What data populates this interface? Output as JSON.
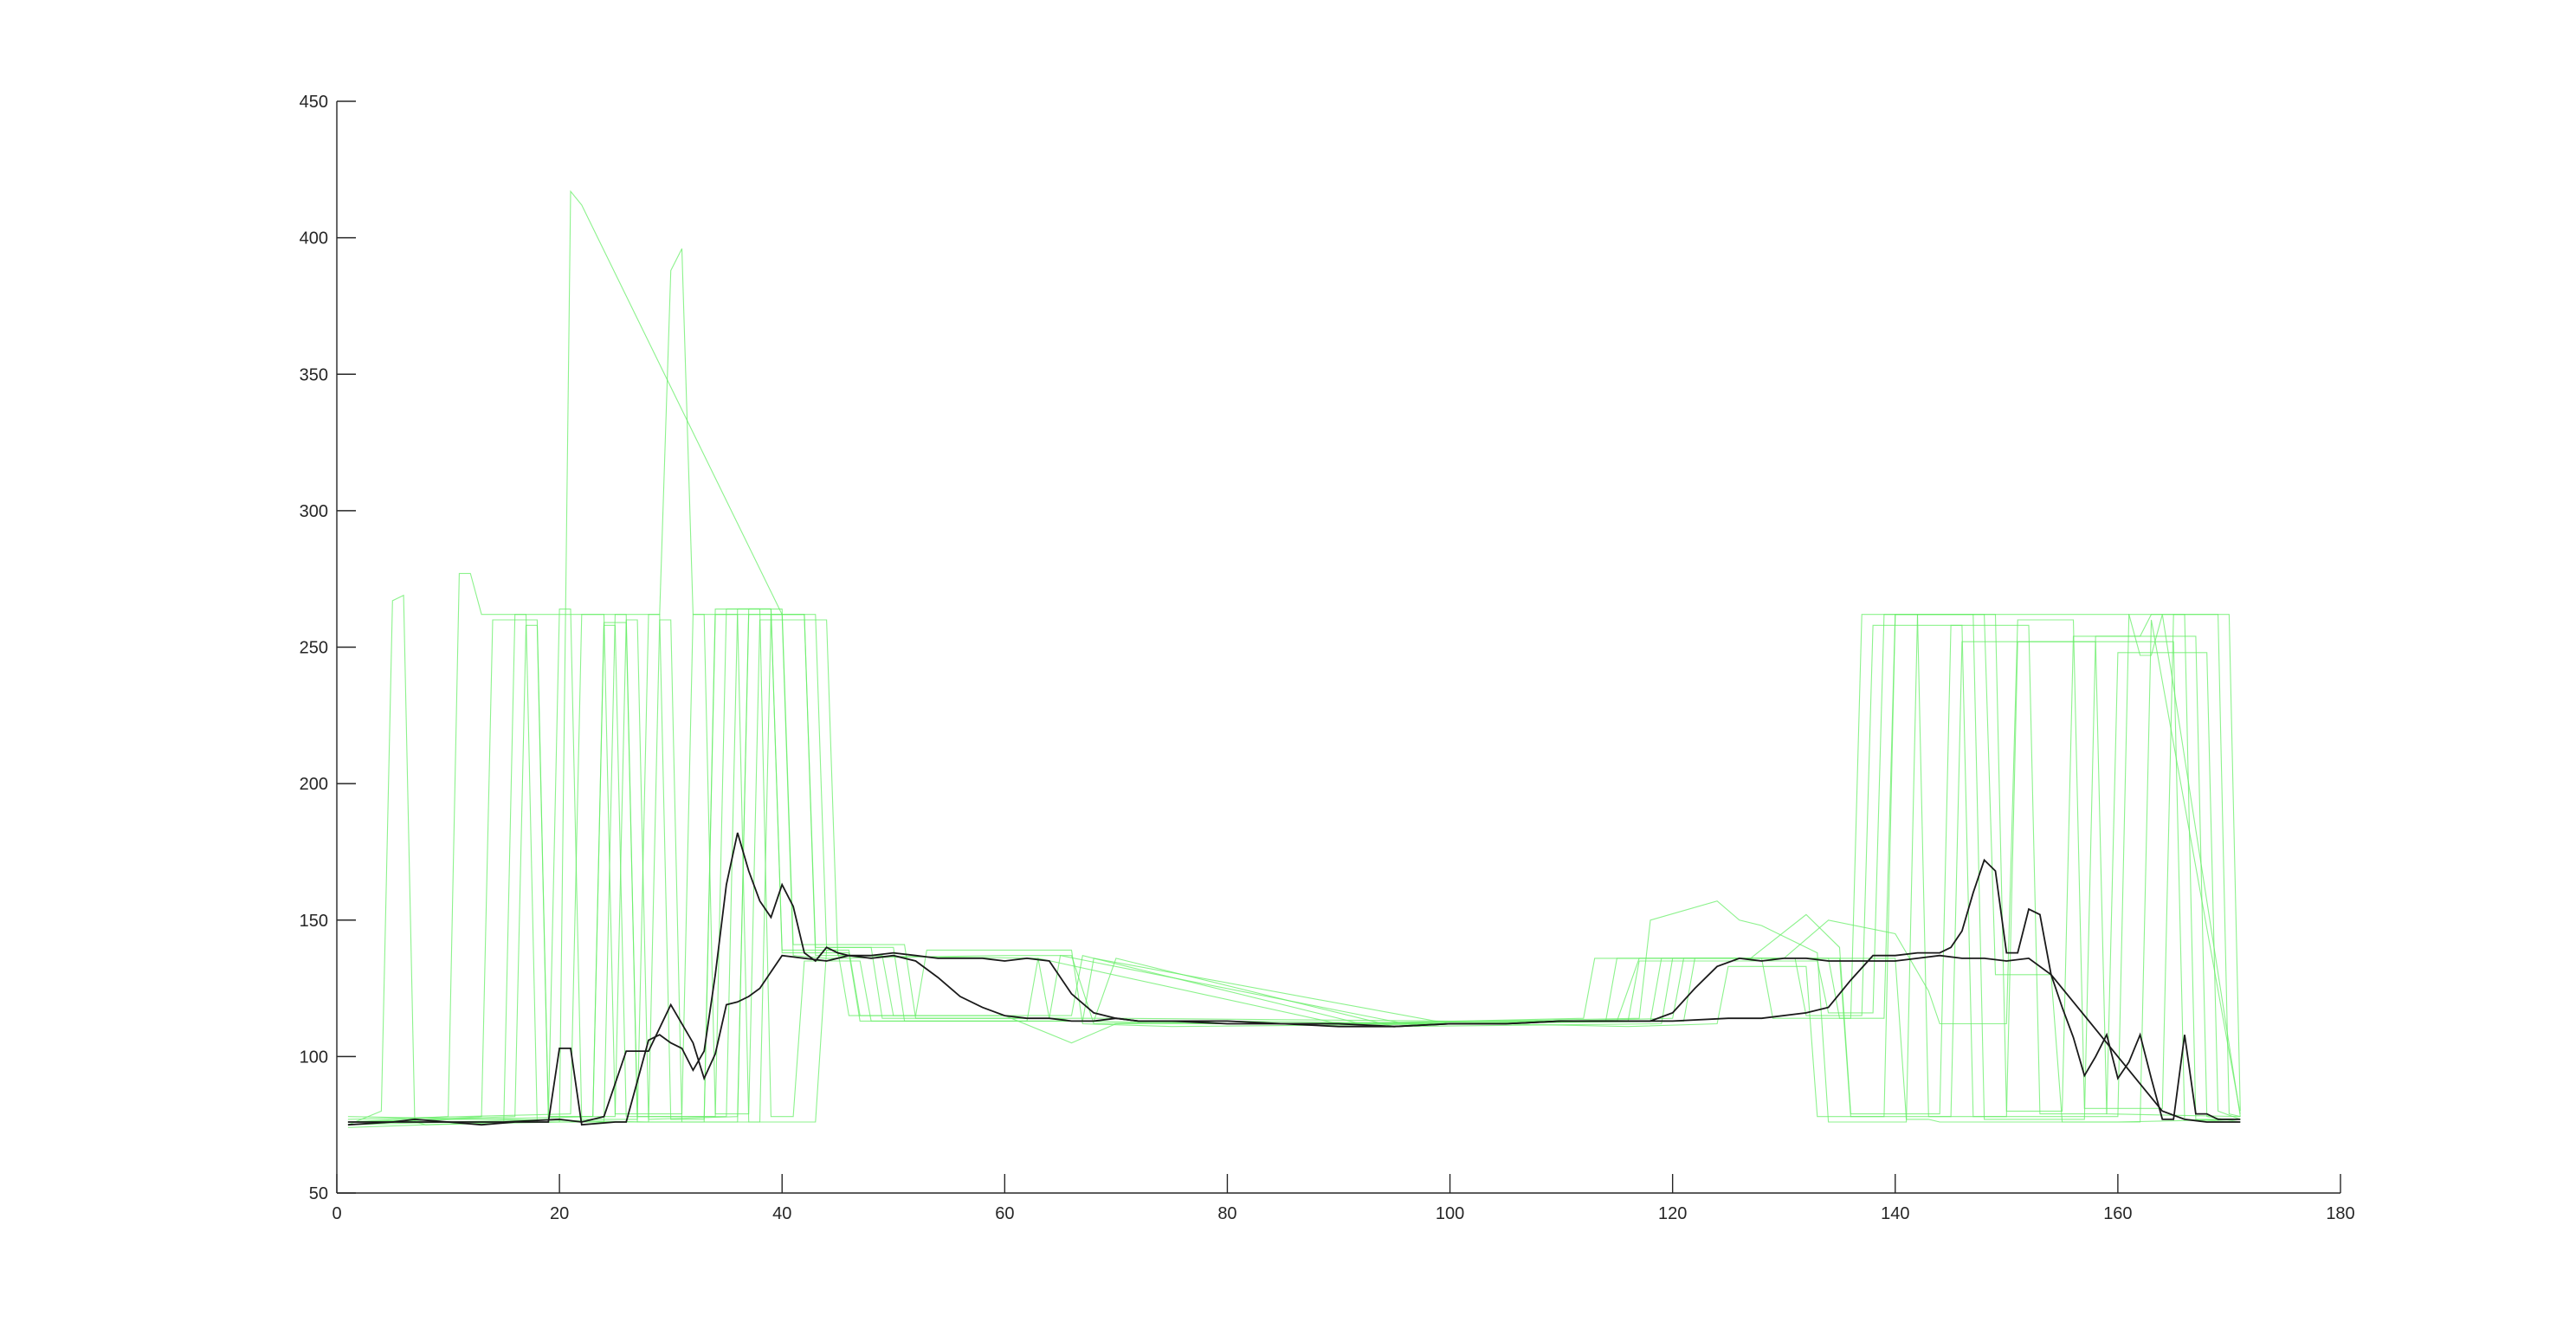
{
  "colors": {
    "background": "#ffffff",
    "axis": "#262626",
    "trials": "#66ee66",
    "mean": "#1a1a1a"
  },
  "chart_data": {
    "type": "line",
    "title": "",
    "xlabel": "",
    "ylabel": "",
    "xlim": [
      0,
      180
    ],
    "ylim": [
      50,
      450
    ],
    "xticks": [
      0,
      20,
      40,
      60,
      80,
      100,
      120,
      140,
      160,
      180
    ],
    "yticks": [
      50,
      100,
      150,
      200,
      250,
      300,
      350,
      400,
      450
    ],
    "grid": false,
    "legend": "none",
    "series": [
      {
        "color": "#66ee66",
        "x": [
          1,
          4,
          5,
          6,
          7,
          8,
          20,
          21,
          22,
          40,
          41,
          44,
          60,
          66,
          68,
          80,
          100,
          115,
          117,
          140,
          141,
          143,
          144,
          160,
          171
        ],
        "y": [
          75,
          80,
          267,
          269,
          76,
          75,
          76,
          417,
          412,
          262,
          137,
          136,
          137,
          137,
          112,
          113,
          112,
          113,
          136,
          136,
          77,
          77,
          76,
          76,
          77
        ]
      },
      {
        "color": "#66ee66",
        "x": [
          1,
          10,
          11,
          12,
          13,
          14,
          29,
          30,
          31,
          32,
          42,
          43,
          45,
          63,
          64,
          70,
          100,
          118,
          119,
          135,
          136,
          145,
          146,
          158,
          159,
          171
        ],
        "y": [
          76,
          78,
          277,
          277,
          262,
          262,
          262,
          388,
          396,
          262,
          262,
          137,
          137,
          136,
          114,
          114,
          113,
          113,
          136,
          136,
          78,
          78,
          252,
          252,
          79,
          78
        ]
      },
      {
        "color": "#66ee66",
        "x": [
          1,
          13,
          14,
          18,
          19,
          25,
          26,
          27,
          28,
          36,
          37,
          42,
          43,
          48,
          49,
          65,
          66,
          80,
          110,
          120,
          121,
          134,
          135,
          139,
          140,
          161,
          162,
          163,
          164,
          171
        ],
        "y": [
          75,
          78,
          260,
          260,
          78,
          78,
          260,
          260,
          77,
          78,
          262,
          262,
          140,
          140,
          114,
          114,
          113,
          112,
          113,
          114,
          136,
          136,
          114,
          114,
          262,
          262,
          247,
          247,
          262,
          78
        ]
      },
      {
        "color": "#66ee66",
        "x": [
          1,
          15,
          16,
          17,
          18,
          24,
          25,
          26,
          27,
          38,
          39,
          43,
          44,
          50,
          51,
          62,
          63,
          90,
          112,
          113,
          128,
          129,
          136,
          137,
          142,
          143,
          150,
          151,
          165,
          166,
          171
        ],
        "y": [
          74,
          76,
          262,
          262,
          76,
          76,
          262,
          262,
          76,
          76,
          262,
          262,
          140,
          140,
          113,
          113,
          136,
          112,
          114,
          136,
          136,
          114,
          114,
          262,
          262,
          78,
          78,
          252,
          252,
          77,
          76
        ]
      },
      {
        "color": "#66ee66",
        "x": [
          1,
          16,
          17,
          18,
          19,
          23,
          24,
          25,
          26,
          34,
          35,
          39,
          40,
          46,
          47,
          67,
          68,
          100,
          114,
          115,
          131,
          132,
          137,
          138,
          146,
          147,
          160,
          161,
          166,
          167,
          171
        ],
        "y": [
          76,
          78,
          258,
          258,
          78,
          78,
          258,
          258,
          78,
          78,
          264,
          264,
          138,
          138,
          113,
          113,
          136,
          112,
          113,
          136,
          136,
          115,
          115,
          258,
          258,
          78,
          78,
          262,
          262,
          77,
          77
        ]
      },
      {
        "color": "#66ee66",
        "x": [
          1,
          19,
          20,
          21,
          22,
          27,
          28,
          29,
          30,
          33,
          34,
          40,
          41,
          51,
          52,
          64,
          65,
          96,
          116,
          117,
          133,
          134,
          138,
          139,
          147,
          148,
          157,
          158,
          167,
          168,
          171
        ],
        "y": [
          75,
          77,
          264,
          264,
          77,
          77,
          262,
          262,
          77,
          77,
          264,
          264,
          141,
          141,
          114,
          114,
          137,
          112,
          113,
          135,
          135,
          116,
          116,
          262,
          262,
          77,
          77,
          254,
          254,
          78,
          76
        ]
      },
      {
        "color": "#66ee66",
        "x": [
          1,
          21,
          22,
          24,
          25,
          31,
          32,
          33,
          34,
          37,
          38,
          44,
          45,
          49,
          50,
          66,
          67,
          92,
          117,
          118,
          124,
          126,
          128,
          133,
          134,
          141,
          142,
          149,
          150,
          155,
          156,
          162,
          163,
          169,
          170,
          171
        ],
        "y": [
          77,
          79,
          262,
          262,
          79,
          79,
          262,
          262,
          79,
          79,
          260,
          260,
          137,
          137,
          115,
          115,
          137,
          112,
          114,
          150,
          157,
          150,
          148,
          138,
          76,
          76,
          262,
          262,
          80,
          80,
          254,
          254,
          262,
          262,
          79,
          78
        ]
      },
      {
        "color": "#66ee66",
        "x": [
          1,
          23,
          24,
          26,
          27,
          35,
          36,
          38,
          39,
          41,
          42,
          47,
          48,
          68,
          70,
          95,
          119,
          120,
          127,
          132,
          135,
          136,
          144,
          145,
          152,
          153,
          159,
          160,
          168,
          169,
          171
        ],
        "y": [
          76,
          78,
          259,
          259,
          78,
          78,
          264,
          264,
          78,
          78,
          135,
          135,
          113,
          113,
          136,
          111,
          112,
          136,
          136,
          152,
          140,
          79,
          79,
          258,
          258,
          79,
          79,
          248,
          248,
          80,
          77
        ]
      },
      {
        "color": "#66ee66",
        "x": [
          1,
          28,
          29,
          30,
          31,
          36,
          37,
          39,
          40,
          45,
          46,
          60,
          66,
          70,
          98,
          121,
          122,
          130,
          134,
          140,
          143,
          144,
          150,
          151,
          156,
          157,
          164,
          165,
          170,
          171
        ],
        "y": [
          78,
          76,
          260,
          260,
          76,
          76,
          264,
          264,
          139,
          139,
          115,
          115,
          105,
          112,
          112,
          113,
          136,
          136,
          150,
          145,
          124,
          112,
          112,
          260,
          260,
          81,
          81,
          262,
          262,
          80
        ]
      },
      {
        "color": "#66ee66",
        "x": [
          1,
          33,
          34,
          36,
          37,
          43,
          44,
          46,
          47,
          52,
          53,
          66,
          67,
          75,
          104,
          116,
          124,
          125,
          132,
          133,
          139,
          140,
          148,
          149,
          154,
          155,
          162,
          163,
          171
        ],
        "y": [
          76,
          76,
          262,
          262,
          76,
          76,
          139,
          139,
          115,
          115,
          139,
          139,
          112,
          111,
          112,
          111,
          112,
          133,
          133,
          78,
          78,
          262,
          262,
          130,
          130,
          76,
          76,
          260,
          79
        ]
      },
      {
        "color": "#1a1a1a",
        "x": [
          1,
          5,
          7,
          10,
          13,
          16,
          19,
          20,
          21,
          22,
          25,
          26,
          28,
          29,
          30,
          31,
          32,
          33,
          34,
          35,
          36,
          37,
          38,
          39,
          40,
          41,
          42,
          43,
          44,
          45,
          46,
          48,
          50,
          52,
          54,
          56,
          58,
          60,
          62,
          64,
          66,
          68,
          70,
          72,
          75,
          80,
          85,
          90,
          95,
          100,
          105,
          110,
          115,
          120,
          125,
          128,
          132,
          134,
          136,
          138,
          140,
          142,
          144,
          145,
          146,
          147,
          148,
          149,
          150,
          151,
          152,
          153,
          154,
          155,
          156,
          157,
          158,
          159,
          160,
          161,
          162,
          163,
          164,
          165,
          166,
          167,
          168,
          169,
          171
        ],
        "y": [
          76,
          76,
          77,
          76,
          75,
          76,
          76,
          103,
          103,
          75,
          76,
          76,
          106,
          108,
          105,
          103,
          95,
          102,
          130,
          163,
          182,
          168,
          157,
          151,
          163,
          155,
          138,
          135,
          140,
          138,
          137,
          137,
          138,
          137,
          136,
          136,
          136,
          135,
          136,
          135,
          123,
          116,
          114,
          113,
          113,
          112,
          112,
          111,
          111,
          112,
          112,
          113,
          113,
          113,
          114,
          114,
          116,
          118,
          128,
          137,
          137,
          138,
          138,
          140,
          146,
          160,
          172,
          168,
          138,
          138,
          154,
          152,
          130,
          118,
          107,
          93,
          100,
          108,
          92,
          98,
          108,
          92,
          77,
          77,
          108,
          79,
          79,
          77,
          77
        ]
      },
      {
        "color": "#1a1a1a",
        "x": [
          1,
          5,
          10,
          15,
          20,
          22,
          24,
          26,
          28,
          30,
          32,
          33,
          34,
          35,
          36,
          37,
          38,
          40,
          42,
          44,
          46,
          48,
          50,
          52,
          54,
          56,
          58,
          60,
          62,
          64,
          66,
          68,
          70,
          72,
          75,
          80,
          85,
          90,
          95,
          100,
          105,
          110,
          115,
          118,
          120,
          122,
          124,
          126,
          128,
          130,
          132,
          134,
          136,
          138,
          140,
          142,
          144,
          146,
          148,
          150,
          152,
          154,
          156,
          158,
          160,
          162,
          164,
          166,
          168,
          170,
          171
        ],
        "y": [
          75,
          76,
          76,
          76,
          77,
          76,
          78,
          102,
          102,
          119,
          105,
          92,
          101,
          119,
          120,
          122,
          125,
          137,
          136,
          135,
          137,
          136,
          137,
          135,
          129,
          122,
          118,
          115,
          114,
          114,
          113,
          113,
          114,
          113,
          113,
          113,
          112,
          112,
          111,
          112,
          112,
          113,
          113,
          113,
          116,
          125,
          133,
          136,
          135,
          136,
          136,
          135,
          135,
          135,
          135,
          136,
          137,
          136,
          136,
          135,
          136,
          130,
          120,
          110,
          100,
          90,
          80,
          77,
          76,
          76,
          76
        ]
      }
    ]
  }
}
